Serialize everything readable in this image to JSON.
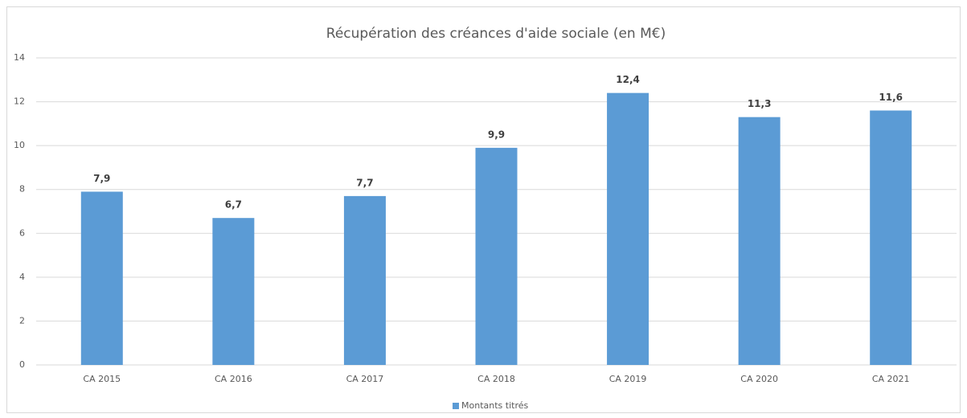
{
  "chart_data": {
    "type": "bar",
    "title": "Récupération des créances d'aide sociale (en M€)",
    "categories": [
      "CA 2015",
      "CA 2016",
      "CA 2017",
      "CA 2018",
      "CA 2019",
      "CA 2020",
      "CA 2021"
    ],
    "series": [
      {
        "name": "Montants titrés",
        "color": "#5b9bd5",
        "values": [
          7.9,
          6.7,
          7.7,
          9.9,
          12.4,
          11.3,
          11.6
        ],
        "value_labels": [
          "7,9",
          "6,7",
          "7,7",
          "9,9",
          "12,4",
          "11,3",
          "11,6"
        ]
      }
    ],
    "ylim": [
      0,
      14
    ],
    "yticks": [
      0,
      2,
      4,
      6,
      8,
      10,
      12,
      14
    ],
    "grid": true,
    "legend": "bottom"
  }
}
